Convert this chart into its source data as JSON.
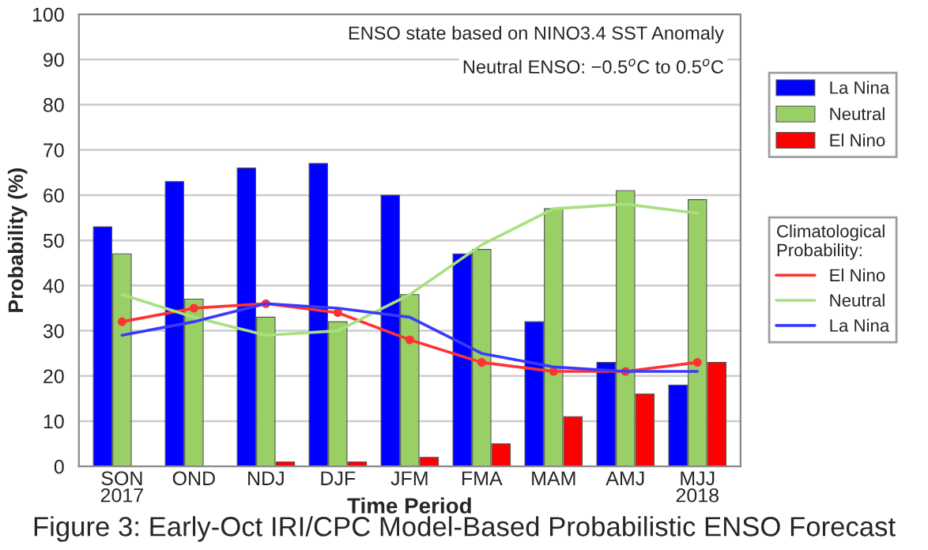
{
  "chart_data": {
    "type": "bar",
    "title": "Figure 3: Early-Oct IRI/CPC Model-Based Probabilistic ENSO Forecast",
    "xlabel": "Time Period",
    "ylabel": "Probability (%)",
    "legend_title": "Climatological\nProbability:",
    "categories": [
      "SON\n2017",
      "OND",
      "NDJ",
      "DJF",
      "JFM",
      "FMA",
      "MAM",
      "AMJ",
      "MJJ\n2018"
    ],
    "series": [
      {
        "name": "La Nina",
        "color": "#0000ff",
        "values": [
          53,
          63,
          66,
          67,
          60,
          47,
          32,
          23,
          18
        ]
      },
      {
        "name": "Neutral",
        "color": "#99d066",
        "values": [
          47,
          37,
          33,
          32,
          38,
          48,
          57,
          61,
          59
        ]
      },
      {
        "name": "El Nino",
        "color": "#ff0000",
        "values": [
          0,
          0,
          1,
          1,
          2,
          5,
          11,
          16,
          23
        ]
      },
      {
        "name": "El Nino",
        "type": "line",
        "color": "#ff3333",
        "marker": "circle",
        "values": [
          32,
          35,
          36,
          34,
          28,
          23,
          21,
          21,
          23
        ]
      },
      {
        "name": "Neutral",
        "type": "line",
        "color": "#a8e080",
        "values": [
          38,
          33,
          29,
          30,
          38,
          49,
          57,
          58,
          56
        ]
      },
      {
        "name": "La Nina",
        "type": "line",
        "color": "#3a3aff",
        "values": [
          29,
          32,
          36,
          35,
          33,
          25,
          22,
          21,
          21
        ]
      }
    ],
    "ylim": [
      0,
      100
    ],
    "yticks": [
      0,
      10,
      20,
      30,
      40,
      50,
      60,
      70,
      80,
      90,
      100
    ],
    "grid": "y",
    "legend": "right",
    "annotations": [
      "ENSO state based on NINO3.4 SST Anomaly",
      "Neutral ENSO: −0.5$^{o}$C to 0.5$^{o}$C"
    ]
  }
}
